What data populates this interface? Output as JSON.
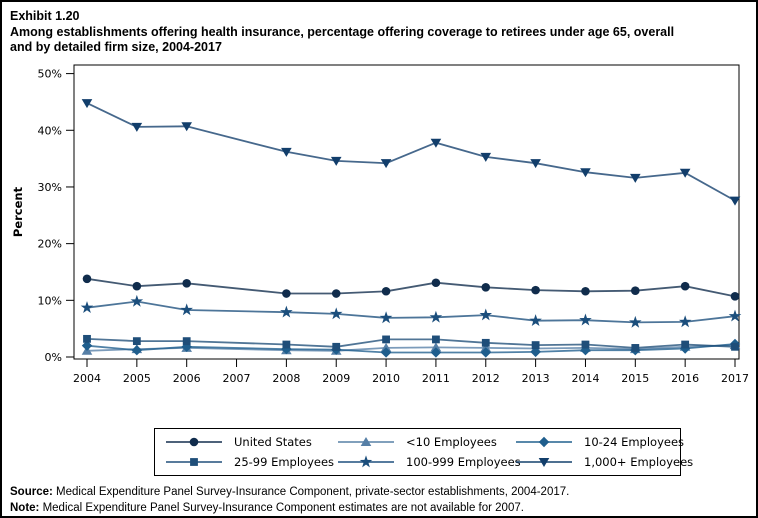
{
  "header": {
    "exhibit": "Exhibit 1.20",
    "title_line1": "Among establishments offering health insurance, percentage offering coverage to retirees under age 65, overall",
    "title_line2": "and by detailed firm size, 2004-2017"
  },
  "chart_data": {
    "type": "line",
    "title": "Among establishments offering health insurance, percentage offering coverage to retirees under age 65, overall and by detailed firm size, 2004-2017",
    "xlabel": "",
    "ylabel": "Percent",
    "ylim": [
      0,
      50
    ],
    "yticks": [
      {
        "v": 0,
        "label": "0%"
      },
      {
        "v": 10,
        "label": "10%"
      },
      {
        "v": 20,
        "label": "20%"
      },
      {
        "v": 30,
        "label": "30%"
      },
      {
        "v": 40,
        "label": "40%"
      },
      {
        "v": 50,
        "label": "50%"
      }
    ],
    "categories": [
      "2004",
      "2005",
      "2006",
      "2007",
      "2008",
      "2009",
      "2010",
      "2011",
      "2012",
      "2013",
      "2014",
      "2015",
      "2016",
      "2017"
    ],
    "missing_year_note": "2007 estimates not available",
    "legend_position": "bottom",
    "grid": false,
    "series": [
      {
        "name": "United States",
        "marker": "circle",
        "color": "#102c4c",
        "values": [
          13.8,
          12.5,
          13.0,
          null,
          11.2,
          11.2,
          11.6,
          13.1,
          12.3,
          11.8,
          11.6,
          11.7,
          12.5,
          10.7
        ]
      },
      {
        "name": "<10 Employees",
        "marker": "triangle-up",
        "color": "#567fa6",
        "values": [
          1.1,
          1.4,
          1.6,
          null,
          1.2,
          1.1,
          1.6,
          1.7,
          1.6,
          1.5,
          1.6,
          1.4,
          1.8,
          2.1
        ]
      },
      {
        "name": "10-24 Employees",
        "marker": "diamond",
        "color": "#1f5e8d",
        "values": [
          2.0,
          1.2,
          1.8,
          null,
          1.4,
          1.3,
          0.8,
          0.8,
          0.8,
          0.9,
          1.2,
          1.2,
          1.5,
          2.3
        ]
      },
      {
        "name": "25-99 Employees",
        "marker": "square",
        "color": "#1f4e79",
        "values": [
          3.2,
          2.8,
          2.8,
          null,
          2.2,
          1.8,
          3.1,
          3.1,
          2.5,
          2.1,
          2.2,
          1.6,
          2.2,
          1.8
        ]
      },
      {
        "name": "100-999 Employees",
        "marker": "star",
        "color": "#1b4e7c",
        "values": [
          8.7,
          9.8,
          8.3,
          null,
          7.9,
          7.6,
          6.9,
          7.0,
          7.4,
          6.4,
          6.5,
          6.1,
          6.2,
          7.2
        ]
      },
      {
        "name": "1,000+ Employees",
        "marker": "triangle-down",
        "color": "#123e6b",
        "values": [
          44.8,
          40.6,
          40.7,
          null,
          36.2,
          34.6,
          34.2,
          37.8,
          35.3,
          34.2,
          32.6,
          31.6,
          32.5,
          27.6
        ]
      }
    ]
  },
  "footer": {
    "source_label": "Source:",
    "source_text": " Medical Expenditure Panel Survey-Insurance Component, private-sector establishments, 2004-2017.",
    "note_label": "Note:",
    "note_text": " Medical Expenditure Panel Survey-Insurance Component estimates are not available for 2007."
  }
}
